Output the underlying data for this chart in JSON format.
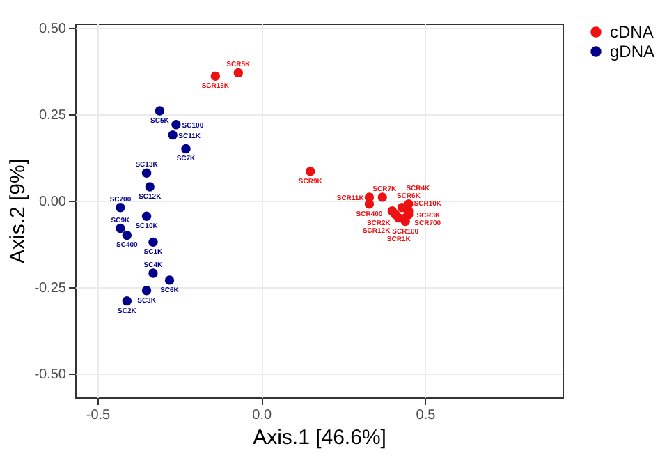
{
  "chart_data": {
    "type": "scatter",
    "xlabel": "Axis.1   [46.6%]",
    "ylabel": "Axis.2   [9%]",
    "xlim": [
      -0.568,
      0.92
    ],
    "ylim": [
      -0.569,
      0.512
    ],
    "xticks": [
      {
        "value": -0.5,
        "label": "-0.5"
      },
      {
        "value": 0,
        "label": "0.0"
      },
      {
        "value": 0.5,
        "label": "0.5"
      }
    ],
    "yticks": [
      {
        "value": -0.5,
        "label": "-0.50"
      },
      {
        "value": -0.25,
        "label": "-0.25"
      },
      {
        "value": 0,
        "label": "0.00"
      },
      {
        "value": 0.25,
        "label": "0.25"
      },
      {
        "value": 0.5,
        "label": "0.50"
      }
    ],
    "grid": true,
    "legend": "right",
    "marker": "circle",
    "series": [
      {
        "name": "cDNA",
        "color": "#ee1111",
        "x": [
          -0.14,
          -0.07,
          0.15,
          0.33,
          0.33,
          0.37,
          0.4,
          0.41,
          0.42,
          0.43,
          0.45,
          0.45,
          0.45,
          0.44,
          0.44
        ],
        "values": [
          0.36,
          0.37,
          0.085,
          0.01,
          -0.01,
          0.01,
          -0.03,
          -0.04,
          -0.05,
          -0.02,
          -0.01,
          -0.03,
          -0.04,
          -0.05,
          -0.06
        ],
        "value_labels": [
          "SCR13K",
          "SCR5K",
          "SCR9K",
          "SCR11K",
          "SCR400",
          "SCR7K",
          "SCR12K",
          "SCR2K",
          "SCR1K",
          "SCR4K",
          "SCR6K",
          "SCR10K",
          "SCR700",
          "SCR3K",
          "SCR100"
        ]
      },
      {
        "name": "gDNA",
        "color": "#00008b",
        "x": [
          -0.31,
          -0.26,
          -0.27,
          -0.23,
          -0.35,
          -0.34,
          -0.43,
          -0.35,
          -0.43,
          -0.41,
          -0.33,
          -0.33,
          -0.28,
          -0.35,
          -0.41
        ],
        "values": [
          0.26,
          0.22,
          0.19,
          0.15,
          0.08,
          0.04,
          -0.02,
          -0.045,
          -0.08,
          -0.1,
          -0.12,
          -0.21,
          -0.23,
          -0.26,
          -0.29
        ],
        "value_labels": [
          "SC5K",
          "SC100",
          "SC11K",
          "SC7K",
          "SC13K",
          "SC12K",
          "SC700",
          "SC10K",
          "SC9K",
          "SC400",
          "SC1K",
          "SC4K",
          "SC6K",
          "SC3K",
          "SC2K"
        ]
      }
    ]
  }
}
